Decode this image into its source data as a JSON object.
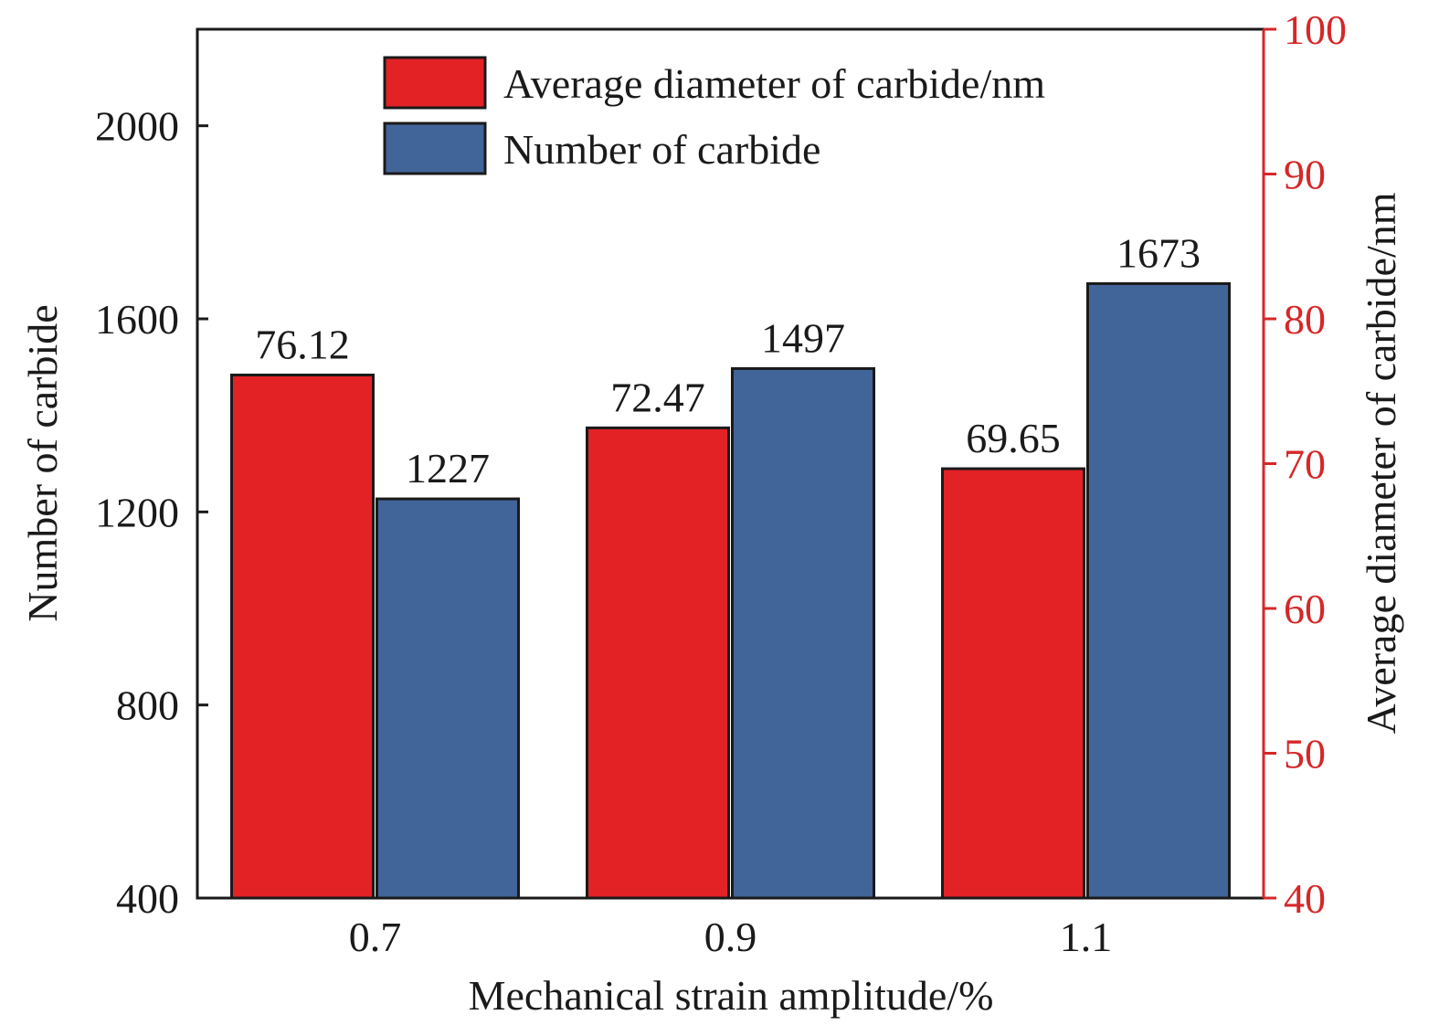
{
  "chart_data": {
    "type": "bar",
    "x_title": "Mechanical strain amplitude/%",
    "categories": [
      "0.7",
      "0.9",
      "1.1"
    ],
    "left_axis": {
      "title": "Number of carbide",
      "ylim": [
        400,
        2200
      ],
      "ticks": [
        "400",
        "800",
        "1200",
        "1600",
        "2000"
      ]
    },
    "right_axis": {
      "title": "Average diameter of carbide/nm",
      "ylim": [
        40,
        100
      ],
      "ticks": [
        "40",
        "50",
        "60",
        "70",
        "80",
        "90",
        "100"
      ],
      "color": "#d62728"
    },
    "series": [
      {
        "name": "Average diameter of carbide/nm",
        "axis": "right",
        "color": "#e32226",
        "values": [
          76.12,
          72.47,
          69.65
        ],
        "labels": [
          "76.12",
          "72.47",
          "69.65"
        ]
      },
      {
        "name": "Number of carbide",
        "axis": "left",
        "color": "#426599",
        "values": [
          1227,
          1497,
          1673
        ],
        "labels": [
          "1227",
          "1497",
          "1673"
        ]
      }
    ],
    "legend_position": "top-center",
    "grid": false
  }
}
